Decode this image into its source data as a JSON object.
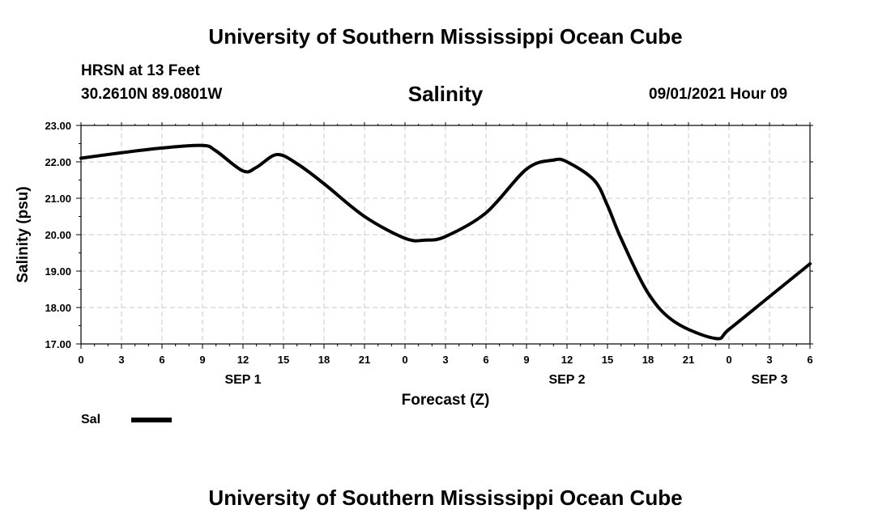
{
  "header": {
    "title": "University of Southern Mississippi Ocean Cube",
    "station": "HRSN at 13 Feet",
    "coordinates": "30.2610N  89.0801W",
    "subtitle": "Salinity",
    "datetime": "09/01/2021 Hour 09"
  },
  "footer": {
    "title": "University of Southern Mississippi Ocean Cube"
  },
  "legend": {
    "label": "Sal"
  },
  "chart_data": {
    "type": "line",
    "title": "Salinity",
    "xlabel": "Forecast (Z)",
    "ylabel": "Salinity (psu)",
    "xlim": [
      0,
      54
    ],
    "ylim": [
      17,
      23
    ],
    "grid": true,
    "x_tick_values": [
      0,
      3,
      6,
      9,
      12,
      15,
      18,
      21,
      24,
      27,
      30,
      33,
      36,
      39,
      42,
      45,
      48,
      51,
      54
    ],
    "x_tick_labels": [
      "0",
      "3",
      "6",
      "9",
      "12",
      "15",
      "18",
      "21",
      "0",
      "3",
      "6",
      "9",
      "12",
      "15",
      "18",
      "21",
      "0",
      "3",
      "6"
    ],
    "y_tick_values": [
      17,
      18,
      19,
      20,
      21,
      22,
      23
    ],
    "y_tick_labels": [
      "17.00",
      "18.00",
      "19.00",
      "20.00",
      "21.00",
      "22.00",
      "23.00"
    ],
    "day_labels": [
      {
        "x": 12,
        "label": "SEP 1"
      },
      {
        "x": 36,
        "label": "SEP 2"
      },
      {
        "x": 51,
        "label": "SEP 3"
      }
    ],
    "series": [
      {
        "name": "Sal",
        "color": "#000000",
        "x": [
          0,
          3,
          6,
          9,
          10,
          12,
          13,
          14.5,
          16,
          18,
          21,
          24,
          25.5,
          27,
          30,
          33,
          35,
          36,
          38,
          39,
          40,
          42,
          44,
          47,
          48,
          51,
          54
        ],
        "y": [
          22.1,
          22.25,
          22.38,
          22.45,
          22.3,
          21.75,
          21.85,
          22.2,
          21.95,
          21.4,
          20.5,
          19.9,
          19.85,
          19.95,
          20.6,
          21.8,
          22.05,
          22.0,
          21.5,
          20.8,
          19.9,
          18.4,
          17.6,
          17.15,
          17.4,
          18.3,
          19.2
        ]
      }
    ]
  }
}
